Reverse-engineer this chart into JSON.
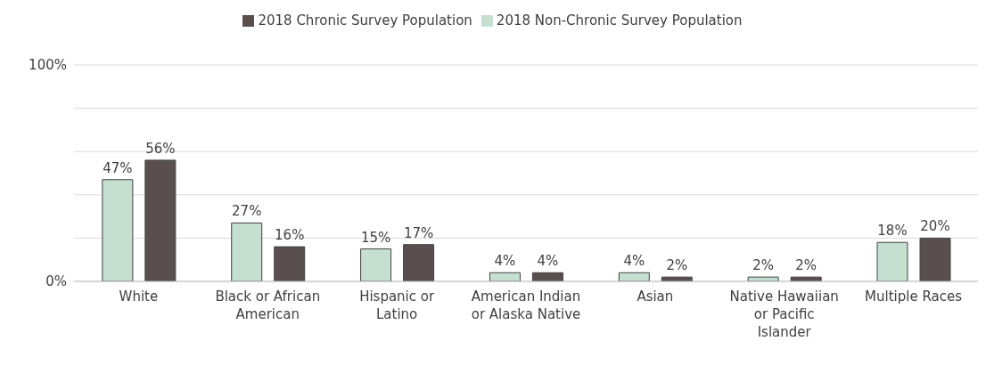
{
  "chart_data": {
    "type": "bar",
    "categories": [
      "White",
      "Black or African American",
      "Hispanic or Latino",
      "American Indian or Alaska Native",
      "Asian",
      "Native Hawaiian or Pacific Islander",
      "Multiple Races"
    ],
    "series": [
      {
        "name": "2018 Non-Chronic Survey Population",
        "color": "#c5e0d0",
        "values": [
          47,
          27,
          15,
          4,
          4,
          2,
          18
        ],
        "value_labels": [
          "47%",
          "27%",
          "15%",
          "4%",
          "4%",
          "2%",
          "18%"
        ]
      },
      {
        "name": "2018 Chronic Survey Population",
        "color": "#594f4f",
        "values": [
          56,
          16,
          17,
          4,
          2,
          2,
          20
        ],
        "value_labels": [
          "56%",
          "16%",
          "17%",
          "4%",
          "2%",
          "2%",
          "20%"
        ]
      }
    ],
    "ylim": [
      0,
      100
    ],
    "yticks": [
      {
        "value": 0,
        "label": "0%"
      },
      {
        "value": 20,
        "label": null
      },
      {
        "value": 40,
        "label": null
      },
      {
        "value": 60,
        "label": null
      },
      {
        "value": 80,
        "label": null
      },
      {
        "value": 100,
        "label": "100%"
      }
    ],
    "grid": "y",
    "legend": "top"
  }
}
